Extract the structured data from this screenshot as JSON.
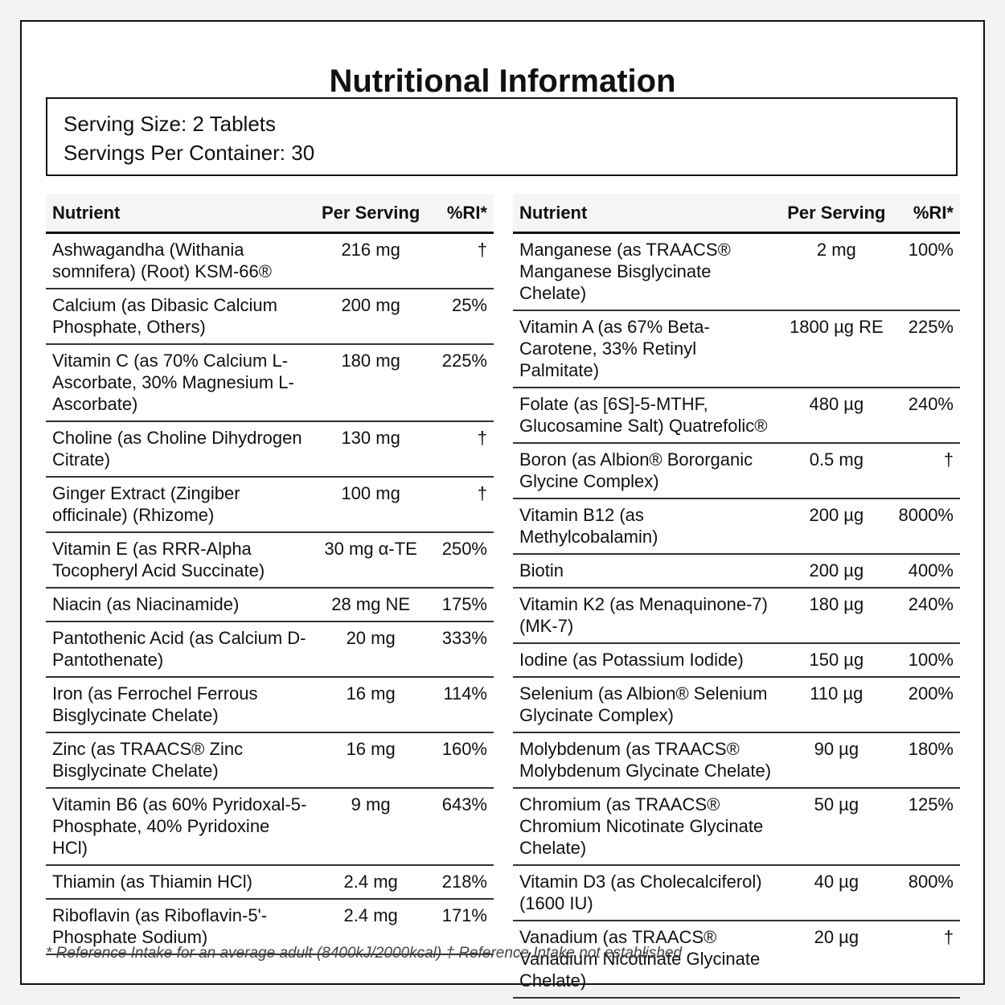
{
  "header": {
    "title": "Nutritional Information"
  },
  "serving": {
    "size": "Serving Size: 2 Tablets",
    "per_container": "Servings Per Container: 30"
  },
  "tables": [
    {
      "columns": [
        "Nutrient",
        "Per Serving",
        "%RI*"
      ],
      "rows": [
        [
          "Ashwagandha (Withania somnifera) (Root) KSM-66®",
          "216 mg",
          "†"
        ],
        [
          "Calcium (as Dibasic Calcium Phosphate, Others)",
          "200 mg",
          "25%"
        ],
        [
          "Vitamin C (as 70% Calcium L-Ascorbate, 30% Magnesium L-Ascorbate)",
          "180 mg",
          "225%"
        ],
        [
          "Choline (as Choline Dihydrogen Citrate)",
          "130 mg",
          "†"
        ],
        [
          "Ginger Extract (Zingiber officinale) (Rhizome)",
          "100 mg",
          "†"
        ],
        [
          "Vitamin E (as RRR-Alpha Tocopheryl Acid Succinate)",
          "30 mg α-TE",
          "250%"
        ],
        [
          "Niacin (as Niacinamide)",
          "28 mg NE",
          "175%"
        ],
        [
          "Pantothenic Acid (as Calcium D-Pantothenate)",
          "20 mg",
          "333%"
        ],
        [
          "Iron (as Ferrochel Ferrous Bisglycinate Chelate)",
          "16 mg",
          "114%"
        ],
        [
          "Zinc (as TRAACS® Zinc Bisglycinate Chelate)",
          "16 mg",
          "160%"
        ],
        [
          "Vitamin B6 (as 60% Pyridoxal-5-Phosphate, 40% Pyridoxine HCl)",
          "9 mg",
          "643%"
        ],
        [
          "Thiamin (as Thiamin HCl)",
          "2.4 mg",
          "218%"
        ],
        [
          "Riboflavin (as Riboflavin-5'-Phosphate Sodium)",
          "2.4 mg",
          "171%"
        ]
      ]
    },
    {
      "columns": [
        "Nutrient",
        "Per Serving",
        "%RI*"
      ],
      "rows": [
        [
          "Manganese (as TRAACS® Manganese Bisglycinate Chelate)",
          "2 mg",
          "100%"
        ],
        [
          "Vitamin A (as 67% Beta-Carotene, 33% Retinyl Palmitate)",
          "1800 µg RE",
          "225%"
        ],
        [
          "Folate (as [6S]-5-MTHF, Glucosamine Salt) Quatrefolic®",
          "480 µg",
          "240%"
        ],
        [
          "Boron (as Albion® Bororganic Glycine Complex)",
          "0.5 mg",
          "†"
        ],
        [
          "Vitamin B12 (as Methylcobalamin)",
          "200 µg",
          "8000%"
        ],
        [
          "Biotin",
          "200 µg",
          "400%"
        ],
        [
          "Vitamin K2 (as Menaquinone-7) (MK-7)",
          "180 µg",
          "240%"
        ],
        [
          "Iodine (as Potassium Iodide)",
          "150 µg",
          "100%"
        ],
        [
          "Selenium (as Albion® Selenium Glycinate Complex)",
          "110 µg",
          "200%"
        ],
        [
          "Molybdenum (as TRAACS® Molybdenum Glycinate Chelate)",
          "90 µg",
          "180%"
        ],
        [
          "Chromium (as TRAACS® Chromium Nicotinate Glycinate Chelate)",
          "50 µg",
          "125%"
        ],
        [
          "Vitamin D3 (as Cholecalciferol) (1600 IU)",
          "40 µg",
          "800%"
        ],
        [
          "Vanadium (as TRAACS® Vanadium Nicotinate Glycinate Chelate)",
          "20 µg",
          "†"
        ]
      ]
    }
  ],
  "footnote": "* Reference Intake for an average adult (8400kJ/2000kcal) † Reference Intake not established"
}
